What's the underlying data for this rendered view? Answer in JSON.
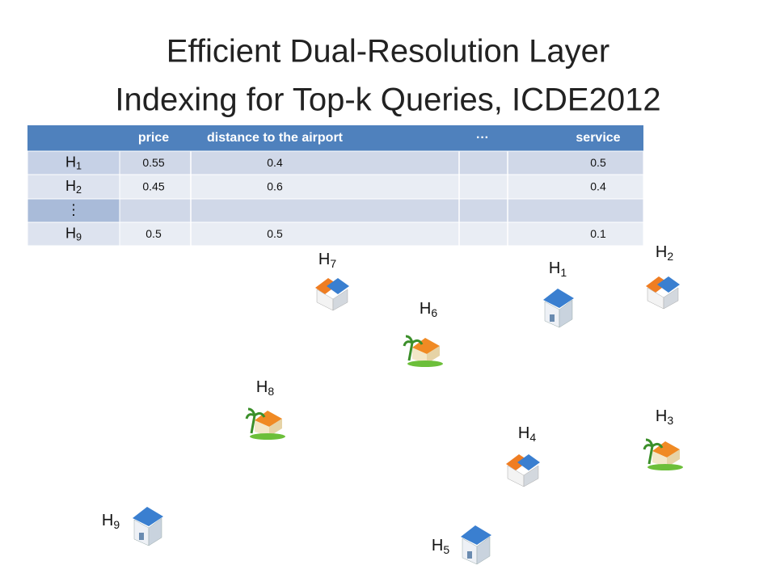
{
  "title": [
    "Efficient Dual-Resolution Layer",
    "Indexing for Top-k Queries, ICDE2012"
  ],
  "table": {
    "header": [
      "price",
      "distance to the airport",
      "···",
      "service"
    ],
    "rows": [
      {
        "label": "H",
        "sub": "1",
        "cells": [
          "0.55",
          "0.4",
          "",
          "0.5"
        ]
      },
      {
        "label": "H",
        "sub": "2",
        "cells": [
          "0.45",
          "0.6",
          "",
          "0.4"
        ]
      },
      {
        "label": "⋮",
        "cells": [
          "",
          "",
          "",
          ""
        ]
      },
      {
        "label": "H",
        "sub": "9",
        "cells": [
          "0.5",
          "0.5",
          "",
          "0.1"
        ]
      }
    ]
  },
  "hotels": [
    {
      "label": "H",
      "sub": "7"
    },
    {
      "label": "H",
      "sub": "1"
    },
    {
      "label": "H",
      "sub": "2"
    },
    {
      "label": "H",
      "sub": "6"
    },
    {
      "label": "H",
      "sub": "8"
    },
    {
      "label": "H",
      "sub": "3"
    },
    {
      "label": "H",
      "sub": "4"
    },
    {
      "label": "H",
      "sub": "9"
    },
    {
      "label": "H",
      "sub": "5"
    }
  ]
}
